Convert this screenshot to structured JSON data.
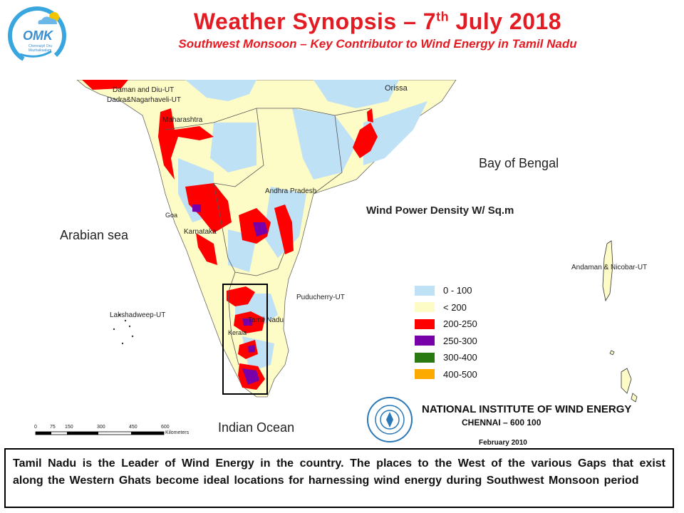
{
  "header": {
    "title_prefix": "Weather Synopsis – 7",
    "title_sup": "th",
    "title_suffix": " July 2018",
    "subtitle": "Southwest Monsoon – Key Contributor to Wind Energy in Tamil Nadu",
    "logo": {
      "text": "OMK",
      "tagline_1": "Chennaiyil Oru",
      "tagline_2": "Mazhaikaalam"
    }
  },
  "map": {
    "places": {
      "daman": "Daman and Diu-UT",
      "dadra": "Dadra&Nagarhaveli-UT",
      "maharashtra": "Maharashtra",
      "orissa": "Orissa",
      "bay": "Bay of Bengal",
      "andhra": "Andhra Pradesh",
      "goa": "Goa",
      "karnataka": "Karnataka",
      "arabian": "Arabian sea",
      "puducherry": "Puducherry-UT",
      "tamilnadu": "Tamil Nadu",
      "kerala": "Kerala",
      "lakshadweep": "Lakshadweep-UT",
      "andaman": "Andaman & Nicobar-UT",
      "indian_ocean": "Indian Ocean"
    },
    "scale": {
      "ticks": [
        "0",
        "75",
        "150",
        "300",
        "450",
        "600"
      ],
      "unit": "Kilometers"
    }
  },
  "legend": {
    "title": "Wind Power Density W/ Sq.m",
    "items": [
      {
        "label": "0 - 100",
        "color": "#bfe1f6"
      },
      {
        "label": "< 200",
        "color": "#fdfbc6"
      },
      {
        "label": "200-250",
        "color": "#fe0000"
      },
      {
        "label": "250-300",
        "color": "#7700a8"
      },
      {
        "label": "300-400",
        "color": "#287a10"
      },
      {
        "label": "400-500",
        "color": "#fdaa00"
      }
    ]
  },
  "institute": {
    "name": "NATIONAL INSTITUTE OF WIND ENERGY",
    "address": "CHENNAI – 600 100",
    "date": "February 2010"
  },
  "caption": "Tamil Nadu is the Leader of Wind Energy in the country.  The places to the West of the various Gaps that exist along the Western Ghats become ideal locations for harnessing wind energy during Southwest Monsoon period"
}
